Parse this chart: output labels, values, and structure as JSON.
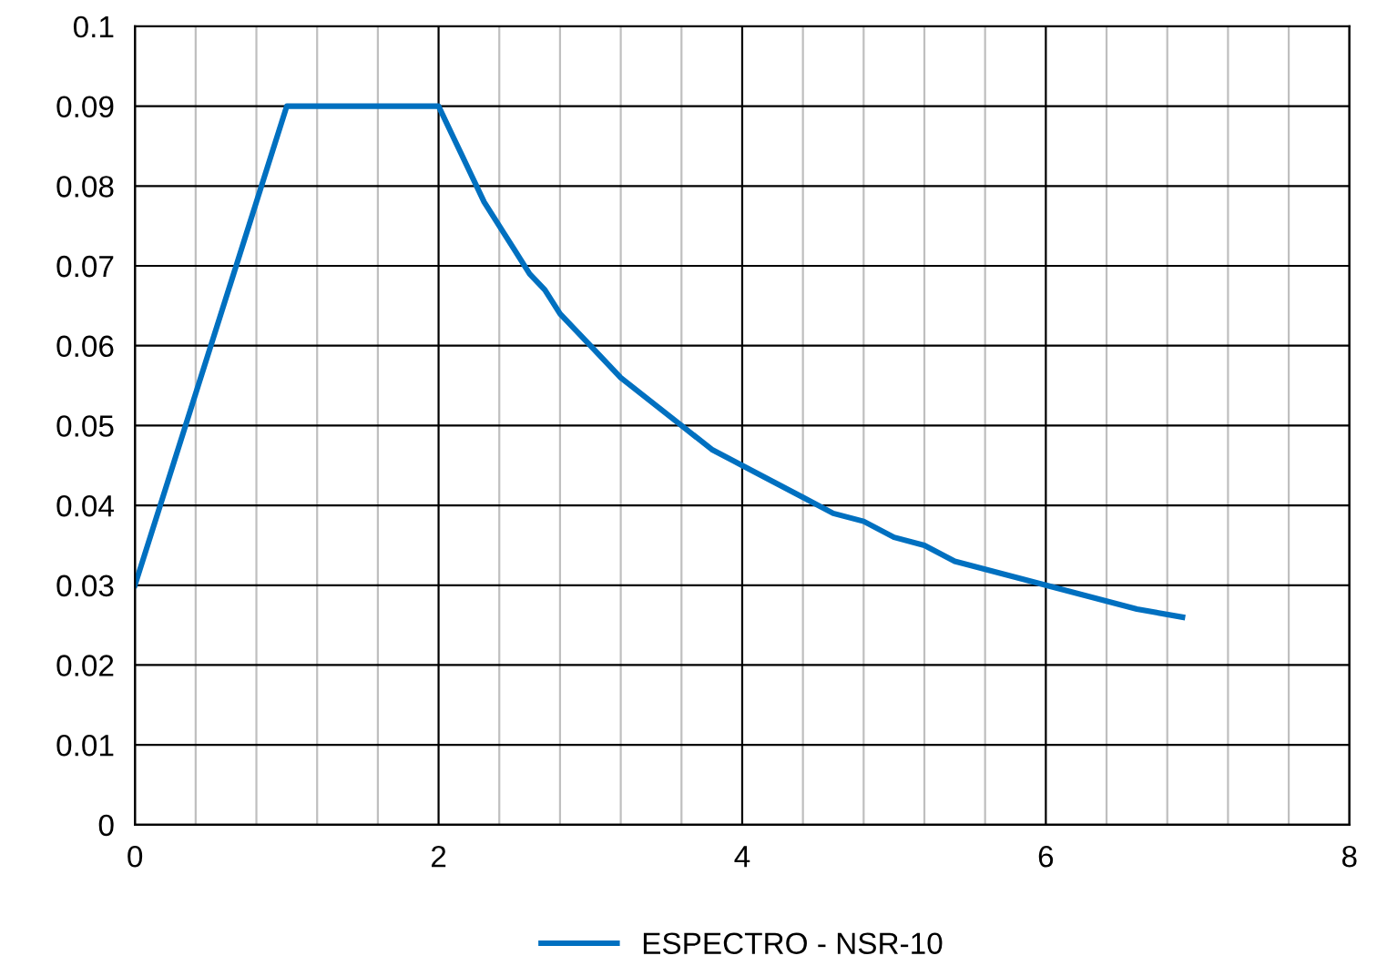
{
  "chart_data": {
    "type": "line",
    "x": [
      0,
      1,
      2,
      2.1,
      2.2,
      2.3,
      2.4,
      2.5,
      2.6,
      2.7,
      2.8,
      2.9,
      3.0,
      3.2,
      3.4,
      3.6,
      3.8,
      4.0,
      4.2,
      4.4,
      4.6,
      4.8,
      5.0,
      5.2,
      5.4,
      5.6,
      5.8,
      6.0,
      6.2,
      6.4,
      6.6,
      6.9
    ],
    "series": [
      {
        "name": "ESPECTRO - NSR-10",
        "color": "#0070c0",
        "values": [
          0.03,
          0.09,
          0.09,
          0.086,
          0.082,
          0.078,
          0.075,
          0.072,
          0.069,
          0.067,
          0.064,
          0.062,
          0.06,
          0.056,
          0.053,
          0.05,
          0.047,
          0.045,
          0.043,
          0.041,
          0.039,
          0.038,
          0.036,
          0.035,
          0.033,
          0.032,
          0.031,
          0.03,
          0.029,
          0.028,
          0.027,
          0.026
        ]
      }
    ],
    "xlim": [
      0,
      8
    ],
    "xticks": [
      0,
      {
        "value": 0.4,
        "label": null
      },
      {
        "value": 0.8,
        "label": null
      },
      {
        "value": 1.2,
        "label": null
      },
      {
        "value": 1.6,
        "label": null
      },
      2,
      {
        "value": 2.4,
        "label": null
      },
      {
        "value": 2.8,
        "label": null
      },
      {
        "value": 3.2,
        "label": null
      },
      {
        "value": 3.6,
        "label": null
      },
      4,
      {
        "value": 4.4,
        "label": null
      },
      {
        "value": 4.8,
        "label": null
      },
      {
        "value": 5.2,
        "label": null
      },
      {
        "value": 5.6,
        "label": null
      },
      6,
      {
        "value": 6.4,
        "label": null
      },
      {
        "value": 6.8,
        "label": null
      },
      {
        "value": 7.2,
        "label": null
      },
      {
        "value": 7.6,
        "label": null
      },
      8
    ],
    "ylim": [
      0,
      0.1
    ],
    "yticks": [
      0,
      0.01,
      0.02,
      0.03,
      0.04,
      0.05,
      0.06,
      0.07,
      0.08,
      0.09,
      0.1
    ],
    "grid": true,
    "legend": "bottom",
    "marker": "none",
    "line_style": "solid"
  }
}
